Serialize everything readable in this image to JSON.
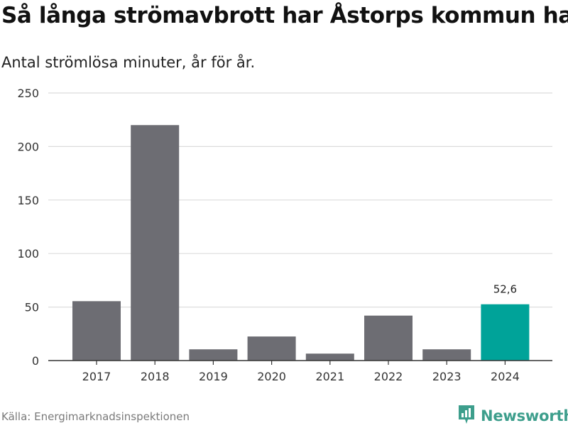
{
  "header": {
    "title": "Så långa strömavbrott har Åstorps kommun haft",
    "subtitle": "Antal strömlösa minuter, år för år."
  },
  "footer": {
    "source": "Källa: Energimarknadsinspektionen",
    "brand": "Newsworthy",
    "brand_icon": "newsworthy-logo-icon"
  },
  "colors": {
    "bar_default": "#6d6d73",
    "bar_highlight": "#00a399",
    "grid": "#dcdcdc",
    "axis": "#333333",
    "brand": "#3d9e8c"
  },
  "chart_data": {
    "type": "bar",
    "title": "Så långa strömavbrott har Åstorps kommun haft",
    "subtitle": "Antal strömlösa minuter, år för år.",
    "xlabel": "",
    "ylabel": "",
    "categories": [
      "2017",
      "2018",
      "2019",
      "2020",
      "2021",
      "2022",
      "2023",
      "2024"
    ],
    "values": [
      55.5,
      220,
      10.5,
      22.5,
      6.5,
      42,
      10.5,
      52.6
    ],
    "highlight_index": 7,
    "data_labels": [
      {
        "index": 7,
        "text": "52,6"
      }
    ],
    "ylim": [
      0,
      250
    ],
    "yticks": [
      0,
      50,
      100,
      150,
      200,
      250
    ],
    "grid": true
  }
}
